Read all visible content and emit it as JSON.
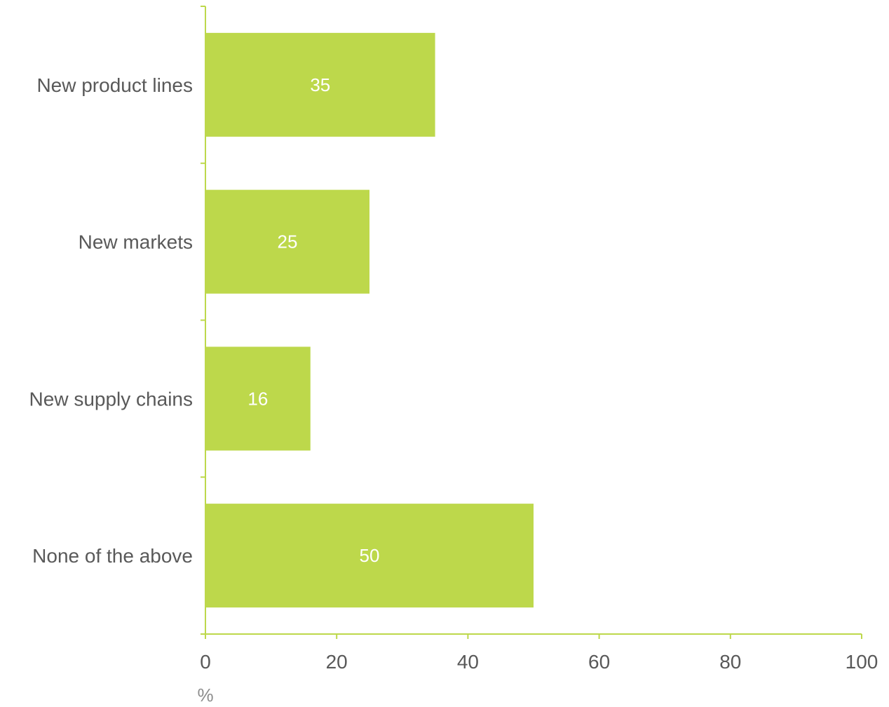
{
  "chart_data": {
    "type": "bar",
    "orientation": "horizontal",
    "categories": [
      "New product lines",
      "New markets",
      "New supply chains",
      "None of the above"
    ],
    "values": [
      35,
      25,
      16,
      50
    ],
    "data_labels": [
      "35",
      "25",
      "16",
      "50"
    ],
    "title": "",
    "xlabel": "%",
    "ylabel": "",
    "xlim": [
      0,
      100
    ],
    "x_ticks": [
      0,
      20,
      40,
      60,
      80,
      100
    ],
    "x_tick_labels": [
      "0",
      "20",
      "40",
      "60",
      "80",
      "100"
    ],
    "grid": false,
    "legend": "none"
  },
  "colors": {
    "bar": "#bdd84b",
    "axis": "#bdd84b",
    "text": "#595959",
    "unit_text": "#8c8c8c",
    "data_label": "#ffffff"
  }
}
